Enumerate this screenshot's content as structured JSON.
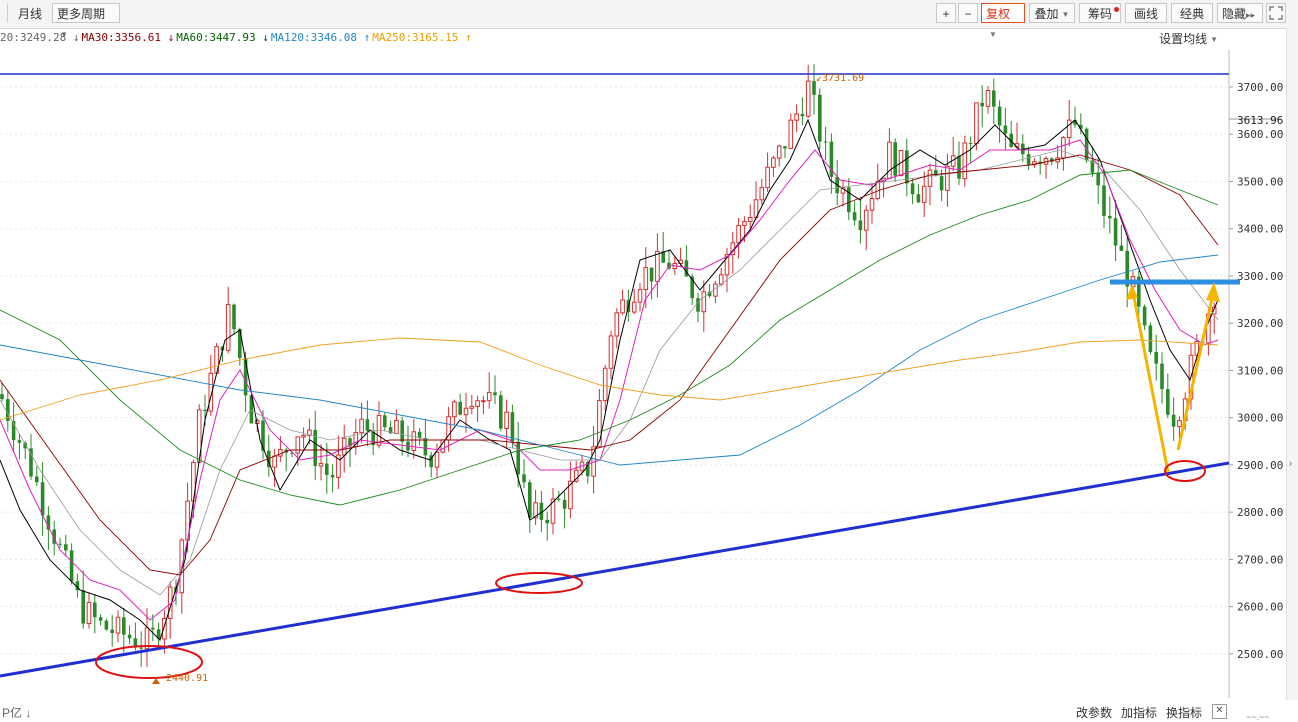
{
  "toolbar": {
    "left": {
      "monthly": "月线",
      "more_periods": "更多周期"
    },
    "right": {
      "plus": "+",
      "minus": "−",
      "fuquan": "复权",
      "overlay": "叠加",
      "chips": "筹码",
      "draw": "画线",
      "classic": "经典",
      "hide": "隐藏",
      "expand": "▸▸"
    }
  },
  "legend": [
    {
      "text": "20:3249.28 ↓",
      "color": "#666666"
    },
    {
      "text": "MA30:3356.61 ↓",
      "color": "#8b0000"
    },
    {
      "text": "MA60:3447.93 ↓",
      "color": "#006400"
    },
    {
      "text": "MA120:3346.08 ↑",
      "color": "#1e88c8"
    },
    {
      "text": "MA250:3165.15 ↑",
      "color": "#e8a000"
    }
  ],
  "set_ma": "设置均线",
  "price_axis": {
    "labels": [
      "3700.00",
      "3600.00",
      "3500.00",
      "3400.00",
      "3300.00",
      "3200.00",
      "3100.00",
      "3000.00",
      "2900.00",
      "2800.00",
      "2700.00",
      "2600.00",
      "2500.00"
    ],
    "current": "3613.96"
  },
  "annotations": {
    "high": "3731.69",
    "low": "2440.91"
  },
  "bottom": {
    "left": "P亿 ↓",
    "params": "改参数",
    "add": "加指标",
    "swap": "换指标",
    "close": "✕",
    "clip": "~~.~~"
  },
  "chart_data": {
    "type": "candlestick",
    "ylim": [
      2440,
      3760
    ],
    "price_labels": [
      3700,
      3600,
      3500,
      3400,
      3300,
      3200,
      3100,
      3000,
      2900,
      2800,
      2700,
      2600,
      2500
    ],
    "high_marker": 3731.69,
    "low_marker": 2440.91,
    "series": [
      {
        "name": "MA30",
        "value": 3356.61
      },
      {
        "name": "MA60",
        "value": 3447.93
      },
      {
        "name": "MA120",
        "value": 3346.08
      },
      {
        "name": "MA250",
        "value": 3165.15
      }
    ],
    "colors": {
      "up": "#d43030",
      "down": "#2a8a2a",
      "ma5": "#000000",
      "ma10": "#e020c0",
      "ma20": "#999999",
      "ma30": "#8b0000",
      "ma60": "#1a8a1a",
      "ma120": "#1e88c8",
      "ma250": "#f0a020",
      "trend": "#1f2fd0",
      "resist": "#2c8fe0",
      "arrow": "#f5b400",
      "circle": "#e01010"
    }
  }
}
